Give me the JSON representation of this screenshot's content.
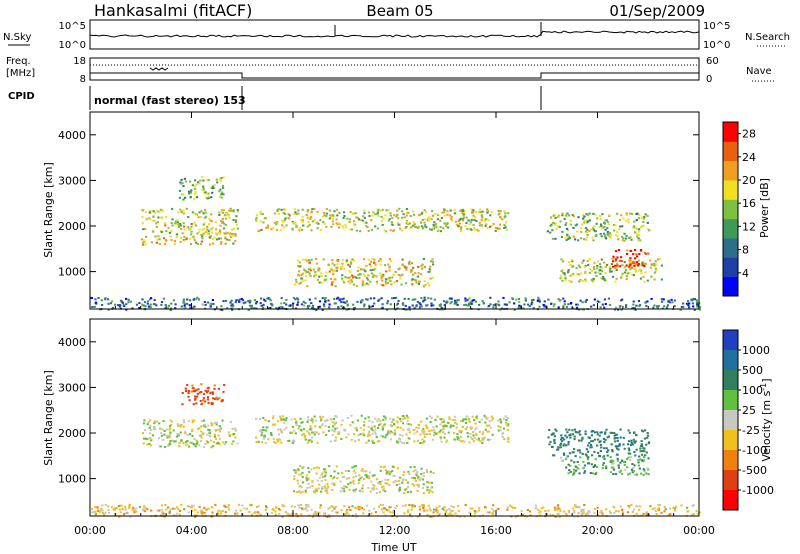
{
  "header": {
    "station": "Hankasalmi (fitACF)",
    "beam": "Beam 05",
    "date": "01/Sep/2009"
  },
  "top_panels": {
    "nsky_label": "N.Sky",
    "nsearch_label": "N.Search",
    "nsky_ticks": [
      "10^5",
      "10^0"
    ],
    "nsearch_ticks": [
      "10^5",
      "10^0"
    ],
    "freq_label_1": "Freq.",
    "freq_label_2": "[MHz]",
    "freq_ticks": [
      "18",
      "8"
    ],
    "nave_label": "Nave",
    "nave_ticks": [
      "60",
      "0"
    ],
    "cpid_label": "CPID",
    "cpid_text": "normal (fast stereo) 153"
  },
  "chart_data": [
    {
      "type": "heatmap",
      "title": "",
      "xlabel": "",
      "ylabel": "Slant Range [km]",
      "x_unit": "hours UT",
      "xlim": [
        0,
        24
      ],
      "ylim": [
        180,
        4500
      ],
      "y_ticks": [
        "4000",
        "3000",
        "2000",
        "1000"
      ],
      "y_tick_values": [
        4000,
        3000,
        2000,
        1000
      ],
      "colorbar": {
        "label": "Power [dB]",
        "ticks": [
          "28",
          "24",
          "20",
          "16",
          "12",
          "8",
          "4"
        ],
        "tick_values": [
          28,
          24,
          20,
          16,
          12,
          8,
          4
        ],
        "range": [
          0,
          30
        ],
        "colors": [
          "#0000ff",
          "#1f3fa8",
          "#2e6e8a",
          "#3f9a5a",
          "#80c040",
          "#f0e020",
          "#f0a020",
          "#e86010",
          "#ff0000"
        ]
      },
      "echo_regions": [
        {
          "t": [
            3.5,
            5.3
          ],
          "r": [
            2600,
            3100
          ],
          "power": 14
        },
        {
          "t": [
            2.0,
            5.8
          ],
          "r": [
            1600,
            2400
          ],
          "power": 18
        },
        {
          "t": [
            6.5,
            16.5
          ],
          "r": [
            1900,
            2400
          ],
          "power": 17
        },
        {
          "t": [
            8.0,
            13.5
          ],
          "r": [
            700,
            1300
          ],
          "power": 18
        },
        {
          "t": [
            18.0,
            22.0
          ],
          "r": [
            1700,
            2300
          ],
          "power": 15
        },
        {
          "t": [
            18.5,
            22.5
          ],
          "r": [
            800,
            1300
          ],
          "power": 16
        },
        {
          "t": [
            20.5,
            22.0
          ],
          "r": [
            1100,
            1500
          ],
          "power": 26
        },
        {
          "t": [
            0.0,
            24.0
          ],
          "r": [
            180,
            450
          ],
          "power": 8
        }
      ]
    },
    {
      "type": "heatmap",
      "title": "",
      "xlabel": "Time UT",
      "ylabel": "Slant Range [km]",
      "x_unit": "hours UT",
      "xlim": [
        0,
        24
      ],
      "ylim": [
        180,
        4500
      ],
      "x_ticks": [
        "00:00",
        "04:00",
        "08:00",
        "12:00",
        "16:00",
        "20:00",
        "00:00"
      ],
      "x_tick_values": [
        0,
        4,
        8,
        12,
        16,
        20,
        24
      ],
      "y_ticks": [
        "4000",
        "3000",
        "2000",
        "1000"
      ],
      "y_tick_values": [
        4000,
        3000,
        2000,
        1000
      ],
      "colorbar": {
        "label": "Velocity [m s-1]",
        "label_base": "Velocity [m s",
        "label_exp": "-1",
        "label_end": "]",
        "ticks": [
          "1000",
          "500",
          "100",
          "25",
          "-25",
          "-100",
          "-500",
          "-1000"
        ],
        "tick_values": [
          1000,
          500,
          100,
          25,
          -25,
          -100,
          -500,
          -1000
        ],
        "colors": [
          "#2040c0",
          "#2070a0",
          "#308060",
          "#60c040",
          "#c8c8c0",
          "#f0c020",
          "#f08010",
          "#e04010",
          "#ff0000"
        ]
      },
      "echo_regions": [
        {
          "t": [
            3.6,
            5.3
          ],
          "r": [
            2650,
            3100
          ],
          "velocity": -300
        },
        {
          "t": [
            2.0,
            5.8
          ],
          "r": [
            1700,
            2300
          ],
          "velocity": 0
        },
        {
          "t": [
            6.5,
            16.5
          ],
          "r": [
            1800,
            2400
          ],
          "velocity": 0
        },
        {
          "t": [
            8.0,
            13.5
          ],
          "r": [
            700,
            1300
          ],
          "velocity": 0
        },
        {
          "t": [
            18.0,
            22.0
          ],
          "r": [
            1500,
            2100
          ],
          "velocity": 200
        },
        {
          "t": [
            18.5,
            22.0
          ],
          "r": [
            1100,
            1500
          ],
          "velocity": 80
        },
        {
          "t": [
            0.0,
            24.0
          ],
          "r": [
            180,
            450
          ],
          "velocity": -50
        }
      ]
    }
  ]
}
